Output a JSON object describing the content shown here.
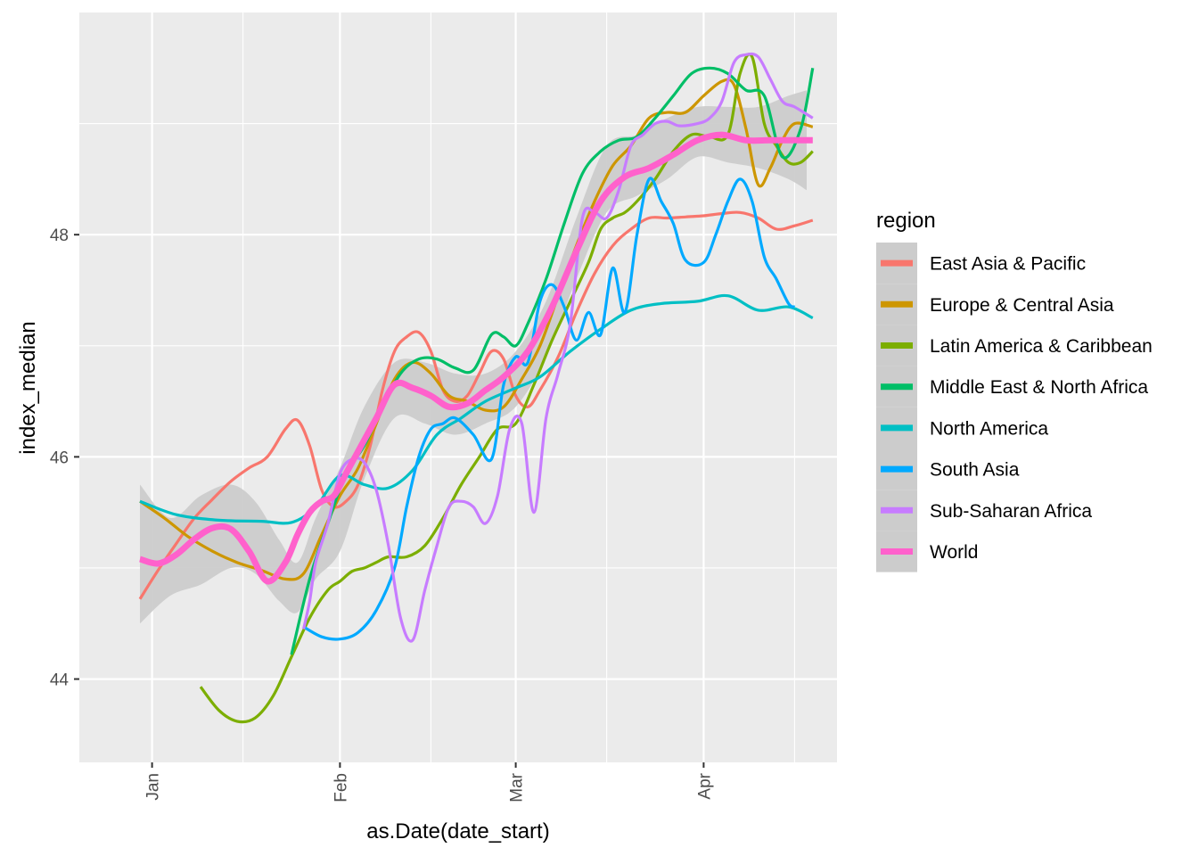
{
  "chart_data": {
    "type": "line",
    "xlabel": "as.Date(date_start)",
    "ylabel": "index_median",
    "x_range": [
      "2019-12-20",
      "2020-04-23"
    ],
    "ylim": [
      43.25,
      50.0
    ],
    "x_ticks": [
      {
        "date": "2020-01-01",
        "label": "Jan"
      },
      {
        "date": "2020-02-01",
        "label": "Feb"
      },
      {
        "date": "2020-03-01",
        "label": "Mar"
      },
      {
        "date": "2020-04-01",
        "label": "Apr"
      }
    ],
    "x_minor_dates": [
      "2020-01-16",
      "2020-02-16",
      "2020-03-16",
      "2020-04-16"
    ],
    "y_ticks": [
      44,
      46,
      48
    ],
    "y_minor": [
      45,
      47,
      49
    ],
    "panel_background": "#ebebeb",
    "grid_color": "#ffffff",
    "legend": {
      "title": "region",
      "position": "right"
    },
    "ribbon": {
      "color": "#cccccc",
      "x": [
        "2019-12-30",
        "2020-01-04",
        "2020-01-09",
        "2020-01-14",
        "2020-01-18",
        "2020-01-22",
        "2020-01-25",
        "2020-01-28",
        "2020-02-01",
        "2020-02-05",
        "2020-02-10",
        "2020-02-15",
        "2020-02-20",
        "2020-02-25",
        "2020-03-01",
        "2020-03-06",
        "2020-03-11",
        "2020-03-16",
        "2020-03-21",
        "2020-03-26",
        "2020-03-31",
        "2020-04-05",
        "2020-04-10",
        "2020-04-15",
        "2020-04-18"
      ],
      "lower": [
        44.5,
        44.75,
        44.85,
        45.0,
        44.95,
        44.7,
        44.6,
        44.9,
        45.15,
        45.8,
        46.35,
        46.3,
        46.2,
        46.3,
        46.45,
        46.9,
        47.6,
        48.2,
        48.35,
        48.5,
        48.7,
        48.65,
        48.6,
        48.5,
        48.4
      ],
      "upper": [
        45.75,
        45.45,
        45.65,
        45.75,
        45.6,
        45.25,
        45.05,
        45.45,
        45.9,
        46.45,
        46.85,
        46.85,
        46.75,
        46.75,
        46.95,
        47.4,
        48.15,
        48.8,
        48.9,
        49.05,
        49.15,
        49.15,
        49.15,
        49.25,
        49.3
      ]
    },
    "series": [
      {
        "name": "East Asia & Pacific",
        "color": "#F8766D",
        "width": 3.2,
        "x": [
          "2019-12-30",
          "2020-01-02",
          "2020-01-05",
          "2020-01-08",
          "2020-01-11",
          "2020-01-14",
          "2020-01-17",
          "2020-01-20",
          "2020-01-23",
          "2020-01-25",
          "2020-01-27",
          "2020-01-29",
          "2020-01-31",
          "2020-02-02",
          "2020-02-04",
          "2020-02-06",
          "2020-02-08",
          "2020-02-10",
          "2020-02-12",
          "2020-02-14",
          "2020-02-16",
          "2020-02-18",
          "2020-02-20",
          "2020-02-22",
          "2020-02-24",
          "2020-02-26",
          "2020-02-28",
          "2020-03-01",
          "2020-03-03",
          "2020-03-05",
          "2020-03-08",
          "2020-03-11",
          "2020-03-14",
          "2020-03-17",
          "2020-03-20",
          "2020-03-23",
          "2020-03-26",
          "2020-03-29",
          "2020-04-01",
          "2020-04-04",
          "2020-04-07",
          "2020-04-10",
          "2020-04-13",
          "2020-04-16",
          "2020-04-19"
        ],
        "y": [
          44.72,
          44.98,
          45.22,
          45.45,
          45.62,
          45.78,
          45.9,
          46.0,
          46.25,
          46.33,
          46.1,
          45.7,
          45.55,
          45.6,
          45.75,
          46.1,
          46.6,
          46.95,
          47.08,
          47.12,
          46.95,
          46.6,
          46.5,
          46.55,
          46.75,
          46.95,
          46.88,
          46.55,
          46.45,
          46.6,
          46.9,
          47.3,
          47.65,
          47.9,
          48.05,
          48.15,
          48.15,
          48.16,
          48.17,
          48.19,
          48.2,
          48.15,
          48.05,
          48.08,
          48.13
        ]
      },
      {
        "name": "Europe & Central Asia",
        "color": "#CD9600",
        "width": 3.2,
        "x": [
          "2019-12-30",
          "2020-01-03",
          "2020-01-07",
          "2020-01-11",
          "2020-01-15",
          "2020-01-19",
          "2020-01-23",
          "2020-01-26",
          "2020-01-29",
          "2020-02-01",
          "2020-02-04",
          "2020-02-07",
          "2020-02-10",
          "2020-02-13",
          "2020-02-16",
          "2020-02-19",
          "2020-02-22",
          "2020-02-25",
          "2020-02-28",
          "2020-03-02",
          "2020-03-05",
          "2020-03-08",
          "2020-03-11",
          "2020-03-14",
          "2020-03-17",
          "2020-03-20",
          "2020-03-23",
          "2020-03-26",
          "2020-03-29",
          "2020-04-01",
          "2020-04-04",
          "2020-04-06",
          "2020-04-08",
          "2020-04-10",
          "2020-04-12",
          "2020-04-14",
          "2020-04-16",
          "2020-04-19"
        ],
        "y": [
          45.6,
          45.45,
          45.28,
          45.15,
          45.05,
          44.98,
          44.9,
          44.95,
          45.3,
          45.65,
          45.9,
          46.3,
          46.7,
          46.85,
          46.75,
          46.55,
          46.5,
          46.42,
          46.45,
          46.7,
          47.0,
          47.45,
          47.9,
          48.3,
          48.62,
          48.8,
          49.05,
          49.1,
          49.1,
          49.25,
          49.38,
          49.35,
          48.95,
          48.45,
          48.6,
          48.85,
          49.0,
          48.97
        ]
      },
      {
        "name": "Latin America & Caribbean",
        "color": "#7CAE00",
        "width": 3.2,
        "x": [
          "2020-01-09",
          "2020-01-12",
          "2020-01-15",
          "2020-01-18",
          "2020-01-21",
          "2020-01-24",
          "2020-01-27",
          "2020-01-30",
          "2020-02-01",
          "2020-02-03",
          "2020-02-05",
          "2020-02-07",
          "2020-02-09",
          "2020-02-12",
          "2020-02-15",
          "2020-02-18",
          "2020-02-21",
          "2020-02-24",
          "2020-02-27",
          "2020-03-01",
          "2020-03-04",
          "2020-03-07",
          "2020-03-10",
          "2020-03-13",
          "2020-03-15",
          "2020-03-17",
          "2020-03-19",
          "2020-03-21",
          "2020-03-24",
          "2020-03-27",
          "2020-03-30",
          "2020-04-02",
          "2020-04-05",
          "2020-04-07",
          "2020-04-09",
          "2020-04-11",
          "2020-04-13",
          "2020-04-15",
          "2020-04-17",
          "2020-04-19"
        ],
        "y": [
          43.93,
          43.72,
          43.62,
          43.65,
          43.85,
          44.2,
          44.55,
          44.8,
          44.88,
          44.97,
          45.0,
          45.05,
          45.1,
          45.1,
          45.2,
          45.45,
          45.75,
          46.0,
          46.25,
          46.3,
          46.65,
          47.05,
          47.4,
          47.75,
          48.05,
          48.15,
          48.2,
          48.3,
          48.5,
          48.75,
          48.9,
          48.88,
          48.9,
          49.45,
          49.6,
          49.0,
          48.8,
          48.65,
          48.65,
          48.75
        ]
      },
      {
        "name": "Middle East & North Africa",
        "color": "#00BE67",
        "width": 3.2,
        "x": [
          "2020-01-24",
          "2020-01-27",
          "2020-01-30",
          "2020-02-02",
          "2020-02-05",
          "2020-02-08",
          "2020-02-11",
          "2020-02-14",
          "2020-02-17",
          "2020-02-20",
          "2020-02-23",
          "2020-02-26",
          "2020-02-28",
          "2020-03-01",
          "2020-03-03",
          "2020-03-06",
          "2020-03-09",
          "2020-03-12",
          "2020-03-15",
          "2020-03-18",
          "2020-03-21",
          "2020-03-24",
          "2020-03-27",
          "2020-03-30",
          "2020-04-02",
          "2020-04-05",
          "2020-04-08",
          "2020-04-11",
          "2020-04-14",
          "2020-04-17",
          "2020-04-19"
        ],
        "y": [
          44.22,
          44.9,
          45.4,
          45.85,
          46.1,
          46.45,
          46.75,
          46.88,
          46.88,
          46.8,
          46.78,
          47.1,
          47.08,
          47.0,
          47.2,
          47.6,
          48.1,
          48.55,
          48.75,
          48.85,
          48.88,
          49.05,
          49.25,
          49.45,
          49.5,
          49.45,
          49.3,
          49.25,
          48.7,
          48.95,
          49.5
        ]
      },
      {
        "name": "North America",
        "color": "#00BFC4",
        "width": 3.2,
        "x": [
          "2019-12-30",
          "2020-01-05",
          "2020-01-12",
          "2020-01-19",
          "2020-01-24",
          "2020-01-28",
          "2020-02-01",
          "2020-02-05",
          "2020-02-09",
          "2020-02-13",
          "2020-02-17",
          "2020-02-21",
          "2020-02-25",
          "2020-03-01",
          "2020-03-05",
          "2020-03-10",
          "2020-03-15",
          "2020-03-20",
          "2020-03-25",
          "2020-03-31",
          "2020-04-05",
          "2020-04-10",
          "2020-04-15",
          "2020-04-19"
        ],
        "y": [
          45.6,
          45.48,
          45.43,
          45.42,
          45.41,
          45.55,
          45.83,
          45.75,
          45.72,
          45.88,
          46.2,
          46.35,
          46.5,
          46.62,
          46.72,
          46.95,
          47.15,
          47.32,
          47.38,
          47.4,
          47.45,
          47.32,
          47.35,
          47.25
        ]
      },
      {
        "name": "South Asia",
        "color": "#00A9FF",
        "width": 3.2,
        "x": [
          "2020-01-26",
          "2020-01-29",
          "2020-02-01",
          "2020-02-04",
          "2020-02-07",
          "2020-02-10",
          "2020-02-12",
          "2020-02-14",
          "2020-02-16",
          "2020-02-18",
          "2020-02-20",
          "2020-02-23",
          "2020-02-26",
          "2020-02-28",
          "2020-03-01",
          "2020-03-03",
          "2020-03-05",
          "2020-03-07",
          "2020-03-09",
          "2020-03-11",
          "2020-03-13",
          "2020-03-15",
          "2020-03-17",
          "2020-03-19",
          "2020-03-21",
          "2020-03-23",
          "2020-03-25",
          "2020-03-27",
          "2020-03-29",
          "2020-04-01",
          "2020-04-03",
          "2020-04-05",
          "2020-04-07",
          "2020-04-09",
          "2020-04-11",
          "2020-04-13",
          "2020-04-15",
          "2020-04-16"
        ],
        "y": [
          44.47,
          44.38,
          44.36,
          44.42,
          44.62,
          45.0,
          45.55,
          46.0,
          46.25,
          46.3,
          46.35,
          46.2,
          45.98,
          46.65,
          46.9,
          46.85,
          47.4,
          47.55,
          47.35,
          47.05,
          47.3,
          47.1,
          47.7,
          47.3,
          48.0,
          48.5,
          48.3,
          48.1,
          47.77,
          47.75,
          48.0,
          48.3,
          48.5,
          48.3,
          47.8,
          47.6,
          47.38,
          47.35
        ]
      },
      {
        "name": "Sub-Saharan Africa",
        "color": "#C77CFF",
        "width": 3.2,
        "x": [
          "2020-01-26",
          "2020-01-27",
          "2020-01-28",
          "2020-01-30",
          "2020-02-01",
          "2020-02-03",
          "2020-02-05",
          "2020-02-07",
          "2020-02-09",
          "2020-02-11",
          "2020-02-13",
          "2020-02-15",
          "2020-02-17",
          "2020-02-19",
          "2020-02-21",
          "2020-02-23",
          "2020-02-25",
          "2020-02-27",
          "2020-02-29",
          "2020-03-02",
          "2020-03-04",
          "2020-03-06",
          "2020-03-08",
          "2020-03-10",
          "2020-03-12",
          "2020-03-14",
          "2020-03-16",
          "2020-03-18",
          "2020-03-20",
          "2020-03-22",
          "2020-03-24",
          "2020-03-26",
          "2020-03-28",
          "2020-03-31",
          "2020-04-02",
          "2020-04-04",
          "2020-04-06",
          "2020-04-08",
          "2020-04-10",
          "2020-04-12",
          "2020-04-14",
          "2020-04-16",
          "2020-04-19"
        ],
        "y": [
          44.45,
          44.7,
          45.05,
          45.4,
          45.85,
          45.98,
          45.95,
          45.7,
          45.2,
          44.55,
          44.35,
          44.8,
          45.2,
          45.55,
          45.6,
          45.55,
          45.4,
          45.65,
          46.25,
          46.3,
          45.5,
          46.35,
          46.75,
          47.2,
          48.15,
          48.2,
          48.15,
          48.4,
          48.8,
          48.9,
          49.0,
          49.02,
          48.98,
          49.0,
          49.05,
          49.2,
          49.55,
          49.62,
          49.6,
          49.4,
          49.2,
          49.15,
          49.05
        ]
      },
      {
        "name": "World",
        "color": "#FF61CC",
        "width": 7,
        "x": [
          "2019-12-30",
          "2020-01-02",
          "2020-01-05",
          "2020-01-08",
          "2020-01-11",
          "2020-01-14",
          "2020-01-17",
          "2020-01-20",
          "2020-01-23",
          "2020-01-25",
          "2020-01-27",
          "2020-01-29",
          "2020-01-31",
          "2020-02-02",
          "2020-02-04",
          "2020-02-07",
          "2020-02-10",
          "2020-02-13",
          "2020-02-16",
          "2020-02-19",
          "2020-02-22",
          "2020-02-25",
          "2020-02-28",
          "2020-03-03",
          "2020-03-07",
          "2020-03-11",
          "2020-03-15",
          "2020-03-19",
          "2020-03-23",
          "2020-03-27",
          "2020-03-31",
          "2020-04-04",
          "2020-04-08",
          "2020-04-12",
          "2020-04-16",
          "2020-04-19"
        ],
        "y": [
          45.08,
          45.04,
          45.12,
          45.26,
          45.36,
          45.35,
          45.15,
          44.88,
          45.05,
          45.3,
          45.5,
          45.6,
          45.65,
          45.85,
          46.05,
          46.35,
          46.65,
          46.62,
          46.55,
          46.45,
          46.48,
          46.6,
          46.72,
          46.95,
          47.35,
          47.85,
          48.3,
          48.52,
          48.6,
          48.72,
          48.85,
          48.9,
          48.85,
          48.85,
          48.85,
          48.85
        ]
      }
    ]
  }
}
